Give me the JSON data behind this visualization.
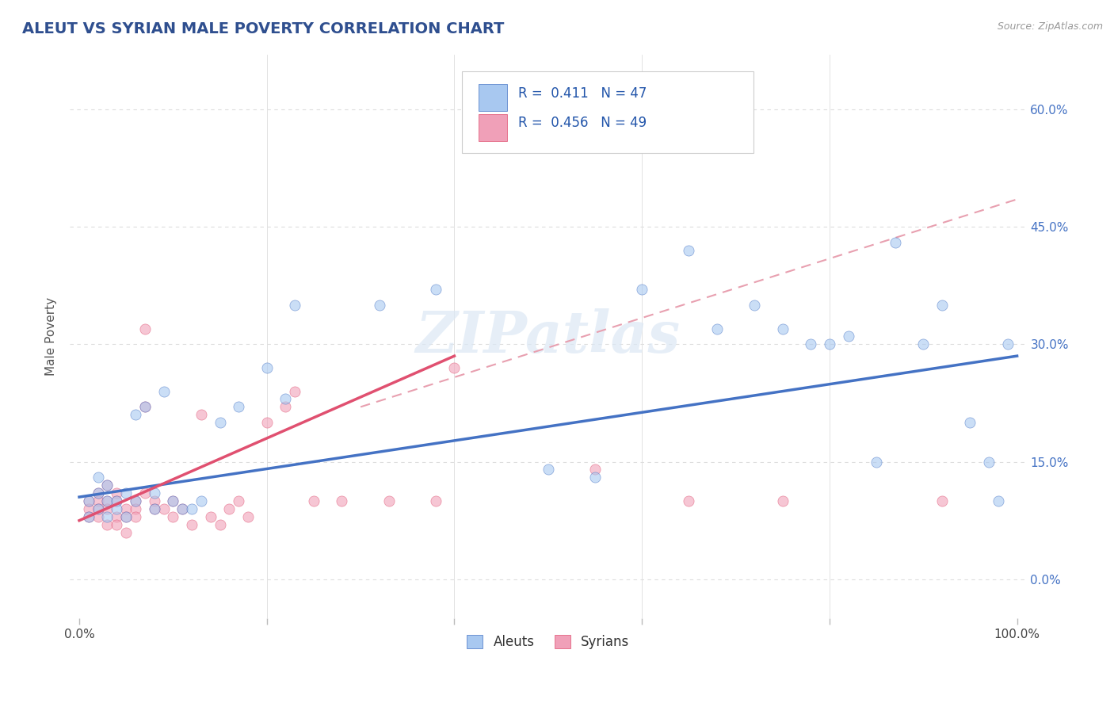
{
  "title": "ALEUT VS SYRIAN MALE POVERTY CORRELATION CHART",
  "source": "Source: ZipAtlas.com",
  "ylabel": "Male Poverty",
  "ytick_labels": [
    "0.0%",
    "15.0%",
    "30.0%",
    "45.0%",
    "60.0%"
  ],
  "ytick_values": [
    0.0,
    0.15,
    0.3,
    0.45,
    0.6
  ],
  "xlim": [
    -0.01,
    1.01
  ],
  "ylim": [
    -0.05,
    0.67
  ],
  "aleut_color": "#a8c8f0",
  "syrian_color": "#f0a0b8",
  "aleut_line_color": "#4472c4",
  "syrian_line_color": "#e05070",
  "dashed_line_color": "#e8a0b0",
  "aleut_R": "0.411",
  "aleut_N": "47",
  "syrian_R": "0.456",
  "syrian_N": "49",
  "aleut_line_x0": 0.0,
  "aleut_line_y0": 0.105,
  "aleut_line_x1": 1.0,
  "aleut_line_y1": 0.285,
  "syrian_line_x0": 0.0,
  "syrian_line_y0": 0.075,
  "syrian_line_x1": 0.4,
  "syrian_line_y1": 0.285,
  "dash_line_x0": 0.3,
  "dash_line_y0": 0.22,
  "dash_line_x1": 1.0,
  "dash_line_y1": 0.485,
  "aleut_scatter_x": [
    0.01,
    0.01,
    0.02,
    0.02,
    0.02,
    0.03,
    0.03,
    0.03,
    0.04,
    0.04,
    0.05,
    0.05,
    0.06,
    0.06,
    0.07,
    0.08,
    0.08,
    0.09,
    0.1,
    0.11,
    0.12,
    0.13,
    0.15,
    0.17,
    0.2,
    0.22,
    0.23,
    0.32,
    0.38,
    0.5,
    0.55,
    0.6,
    0.65,
    0.68,
    0.72,
    0.75,
    0.78,
    0.8,
    0.82,
    0.85,
    0.87,
    0.9,
    0.92,
    0.95,
    0.97,
    0.98,
    0.99
  ],
  "aleut_scatter_y": [
    0.1,
    0.08,
    0.09,
    0.11,
    0.13,
    0.1,
    0.12,
    0.08,
    0.1,
    0.09,
    0.11,
    0.08,
    0.21,
    0.1,
    0.22,
    0.09,
    0.11,
    0.24,
    0.1,
    0.09,
    0.09,
    0.1,
    0.2,
    0.22,
    0.27,
    0.23,
    0.35,
    0.35,
    0.37,
    0.14,
    0.13,
    0.37,
    0.42,
    0.32,
    0.35,
    0.32,
    0.3,
    0.3,
    0.31,
    0.15,
    0.43,
    0.3,
    0.35,
    0.2,
    0.15,
    0.1,
    0.3
  ],
  "syrian_scatter_x": [
    0.01,
    0.01,
    0.01,
    0.02,
    0.02,
    0.02,
    0.02,
    0.03,
    0.03,
    0.03,
    0.03,
    0.04,
    0.04,
    0.04,
    0.04,
    0.05,
    0.05,
    0.05,
    0.06,
    0.06,
    0.06,
    0.07,
    0.07,
    0.07,
    0.08,
    0.08,
    0.09,
    0.1,
    0.1,
    0.11,
    0.12,
    0.13,
    0.14,
    0.15,
    0.16,
    0.17,
    0.18,
    0.2,
    0.22,
    0.23,
    0.25,
    0.28,
    0.33,
    0.38,
    0.4,
    0.55,
    0.65,
    0.75,
    0.92
  ],
  "syrian_scatter_y": [
    0.1,
    0.09,
    0.08,
    0.11,
    0.1,
    0.09,
    0.08,
    0.12,
    0.1,
    0.09,
    0.07,
    0.11,
    0.1,
    0.08,
    0.07,
    0.09,
    0.08,
    0.06,
    0.1,
    0.09,
    0.08,
    0.32,
    0.22,
    0.11,
    0.1,
    0.09,
    0.09,
    0.1,
    0.08,
    0.09,
    0.07,
    0.21,
    0.08,
    0.07,
    0.09,
    0.1,
    0.08,
    0.2,
    0.22,
    0.24,
    0.1,
    0.1,
    0.1,
    0.1,
    0.27,
    0.14,
    0.1,
    0.1,
    0.1
  ],
  "background_color": "#ffffff",
  "grid_color": "#dddddd",
  "marker_size": 90,
  "marker_alpha": 0.6
}
